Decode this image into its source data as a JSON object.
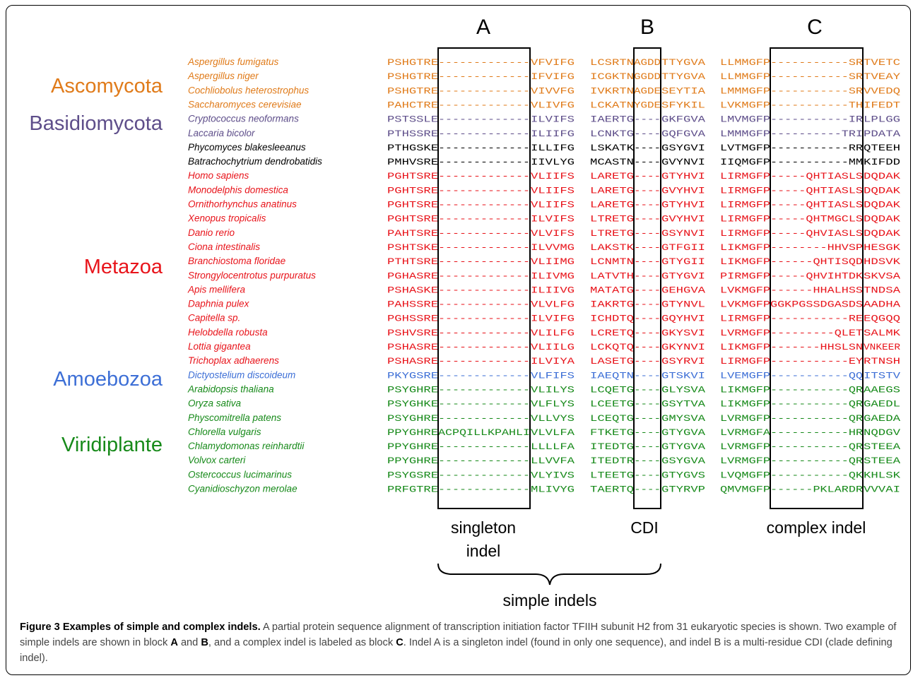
{
  "colors": {
    "Ascomycota": "#e07b1a",
    "Basidiomycota": "#5e4e8a",
    "Other": "#000000",
    "Metazoa": "#e8141b",
    "Amoebozoa": "#3d6fd6",
    "Viridiplante": "#178a1a"
  },
  "groups": [
    {
      "label": "Ascomycota",
      "clade": "Ascomycota"
    },
    {
      "label": "Basidiomycota",
      "clade": "Basidiomycota"
    },
    {
      "label": "Metazoa",
      "clade": "Metazoa"
    },
    {
      "label": "Amoebozoa",
      "clade": "Amoebozoa"
    },
    {
      "label": "Viridiplante",
      "clade": "Viridiplante"
    }
  ],
  "blocks": [
    "A",
    "B",
    "C"
  ],
  "annotations": {
    "singleton": [
      "singleton",
      "indel"
    ],
    "cdi": "CDI",
    "complex": "complex indel",
    "simple": "simple indels"
  },
  "rows": [
    {
      "species": "Aspergillus fumigatus",
      "clade": "Ascomycota",
      "s1": "PSHGTRE",
      "a": "-------------",
      "s2": "VFVIFG",
      "s3": "LCSRTN",
      "b": "AGDD",
      "s4": "TTYGVA",
      "s5": "LLMMGFP",
      "c": "-----------SR",
      "s6": "TVETC"
    },
    {
      "species": "Aspergillus niger",
      "clade": "Ascomycota",
      "s1": "PSHGTRE",
      "a": "-------------",
      "s2": "IFVIFG",
      "s3": "ICGKTN",
      "b": "GGDD",
      "s4": "TTYGVA",
      "s5": "LLMMGFP",
      "c": "-----------SR",
      "s6": "TVEAY"
    },
    {
      "species": "Cochliobolus heterostrophus",
      "clade": "Ascomycota",
      "s1": "PSHGTRE",
      "a": "-------------",
      "s2": "VIVVFG",
      "s3": "IVKRTN",
      "b": "AGDE",
      "s4": "SEYTIA",
      "s5": "LMMMGFP",
      "c": "-----------SR",
      "s6": "VVEDQ"
    },
    {
      "species": "Saccharomyces cerevisiae",
      "clade": "Ascomycota",
      "s1": "PAHCTRE",
      "a": "-------------",
      "s2": "VLIVFG",
      "s3": "LCKATN",
      "b": "YGDE",
      "s4": "SFYKIL",
      "s5": "LVKMGFP",
      "c": "-----------TH",
      "s6": "IFEDT"
    },
    {
      "species": "Cryptococcus neoformans",
      "clade": "Basidiomycota",
      "s1": "PSTSSLE",
      "a": "-------------",
      "s2": "ILVIFS",
      "s3": "IAERTG",
      "b": "----",
      "s4": "GKFGVA",
      "s5": "LMVMGFP",
      "c": "-----------IR",
      "s6": "LPLGG"
    },
    {
      "species": "Laccaria bicolor",
      "clade": "Basidiomycota",
      "s1": "PTHSSRE",
      "a": "-------------",
      "s2": "ILIIFG",
      "s3": "LCNKTG",
      "b": "----",
      "s4": "GQFGVA",
      "s5": "LMMMGFP",
      "c": "----------TRI",
      "s6": "PDATA"
    },
    {
      "species": "Phycomyces blakesleeanus",
      "clade": "Other",
      "s1": "PTHGSKE",
      "a": "-------------",
      "s2": "ILLIFG",
      "s3": "LSKATK",
      "b": "----",
      "s4": "GSYGVI",
      "s5": "LVTMGFP",
      "c": "-----------RR",
      "s6": "QTEEH"
    },
    {
      "species": "Batrachochytrium dendrobatidis",
      "clade": "Other",
      "s1": "PMHVSRE",
      "a": "-------------",
      "s2": "IIVLYG",
      "s3": "MCASTN",
      "b": "----",
      "s4": "GVYNVI",
      "s5": "IIQMGFP",
      "c": "-----------MM",
      "s6": "KIFDD"
    },
    {
      "species": "Homo sapiens",
      "clade": "Metazoa",
      "s1": "PGHTSRE",
      "a": "-------------",
      "s2": "VLIIFS",
      "s3": "LARETG",
      "b": "----",
      "s4": "GTYHVI",
      "s5": "LIRMGFP",
      "c": "-----QHTIASLS",
      "s6": "DQDAK"
    },
    {
      "species": "Monodelphis domestica",
      "clade": "Metazoa",
      "s1": "PGHTSRE",
      "a": "-------------",
      "s2": "VLIIFS",
      "s3": "LARETG",
      "b": "----",
      "s4": "GVYHVI",
      "s5": "LIRMGFP",
      "c": "-----QHTIASLS",
      "s6": "DQDAK"
    },
    {
      "species": "Ornithorhynchus anatinus",
      "clade": "Metazoa",
      "s1": "PGHTSRE",
      "a": "-------------",
      "s2": "VLIIFS",
      "s3": "LARETG",
      "b": "----",
      "s4": "GTYHVI",
      "s5": "LIRMGFP",
      "c": "-----QHTIASLS",
      "s6": "DQDAK"
    },
    {
      "species": "Xenopus tropicalis",
      "clade": "Metazoa",
      "s1": "PGHTSRE",
      "a": "-------------",
      "s2": "ILVIFS",
      "s3": "LTRETG",
      "b": "----",
      "s4": "GVYHVI",
      "s5": "LIRMGFP",
      "c": "-----QHTMGCLS",
      "s6": "DQDAK"
    },
    {
      "species": "Danio rerio",
      "clade": "Metazoa",
      "s1": "PAHTSRE",
      "a": "-------------",
      "s2": "VLVIFS",
      "s3": "LTRETG",
      "b": "----",
      "s4": "GSYNVI",
      "s5": "LIRMGFP",
      "c": "-----QHVIASLS",
      "s6": "DQDAK"
    },
    {
      "species": "Ciona intestinalis",
      "clade": "Metazoa",
      "s1": "PSHTSKE",
      "a": "-------------",
      "s2": "ILVVMG",
      "s3": "LAKSTK",
      "b": "----",
      "s4": "GTFGII",
      "s5": "LIKMGFP",
      "c": "--------HHVSP",
      "s6": "HESGK"
    },
    {
      "species": "Branchiostoma floridae",
      "clade": "Metazoa",
      "s1": "PTHTSRE",
      "a": "-------------",
      "s2": "VLIIMG",
      "s3": "LCNMTN",
      "b": "----",
      "s4": "GTYGII",
      "s5": "LIKMGFP",
      "c": "------QHTISQD",
      "s6": "HDSVK"
    },
    {
      "species": "Strongylocentrotus purpuratus",
      "clade": "Metazoa",
      "s1": "PGHASRE",
      "a": "-------------",
      "s2": "ILIVMG",
      "s3": "LATVTH",
      "b": "----",
      "s4": "GTYGVI",
      "s5": "PIRMGFP",
      "c": "-----QHVIHTDK",
      "s6": "SKVSA"
    },
    {
      "species": "Apis mellifera",
      "clade": "Metazoa",
      "s1": "PSHASKE",
      "a": "-------------",
      "s2": "ILIIVG",
      "s3": "MATATG",
      "b": "----",
      "s4": "GEHGVA",
      "s5": "LVKMGFP",
      "c": "------HHALHSS",
      "s6": "TNDSA"
    },
    {
      "species": "Daphnia pulex",
      "clade": "Metazoa",
      "s1": "PAHSSRE",
      "a": "-------------",
      "s2": "VLVLFG",
      "s3": "IAKRTG",
      "b": "----",
      "s4": "GTYNVL",
      "s5": "LVKMGFP",
      "c": "GGKPGSSDGASDS",
      "s6": "AADHA"
    },
    {
      "species": "Capitella sp.",
      "clade": "Metazoa",
      "s1": "PGHSSRE",
      "a": "-------------",
      "s2": "ILVIFG",
      "s3": "ICHDTQ",
      "b": "----",
      "s4": "GQYHVI",
      "s5": "LIRMGFP",
      "c": "-----------RE",
      "s6": "EQGQQ"
    },
    {
      "species": "Helobdella robusta",
      "clade": "Metazoa",
      "s1": "PSHVSRE",
      "a": "-------------",
      "s2": "VLILFG",
      "s3": "LCRETQ",
      "b": "----",
      "s4": "GKYSVI",
      "s5": "LVRMGFP",
      "c": "---------QLET",
      "s6": "SALMK"
    },
    {
      "species": "Lottia gigantea",
      "clade": "Metazoa",
      "s1": "PSHASRE",
      "a": "-------------",
      "s2": "VLIILG",
      "s3": "LCKQTQ",
      "b": "----",
      "s4": "GKYNVI",
      "s5": "LIKMGFP",
      "c": "-------HHSLSN",
      "s6": "VNKEER"
    },
    {
      "species": "Trichoplax adhaerens",
      "clade": "Metazoa",
      "s1": "PSHASRE",
      "a": "-------------",
      "s2": "ILVIYA",
      "s3": "LASETG",
      "b": "----",
      "s4": "GSYRVI",
      "s5": "LIRMGFP",
      "c": "-----------EY",
      "s6": "RTNSH"
    },
    {
      "species": "Dictyostelium discoideum",
      "clade": "Amoebozoa",
      "s1": "PKYGSRE",
      "a": "-------------",
      "s2": "VLFIFS",
      "s3": "IAEQTN",
      "b": "----",
      "s4": "GTSKVI",
      "s5": "LVEMGFP",
      "c": "-----------QQ",
      "s6": "ITSTV"
    },
    {
      "species": "Arabidopsis thaliana",
      "clade": "Viridiplante",
      "s1": "PSYGHRE",
      "a": "-------------",
      "s2": "VLILYS",
      "s3": "LCQETG",
      "b": "----",
      "s4": "GLYSVA",
      "s5": "LIKMGFP",
      "c": "-----------QR",
      "s6": "AAEGS"
    },
    {
      "species": "Oryza sativa",
      "clade": "Viridiplante",
      "s1": "PSYGHKE",
      "a": "-------------",
      "s2": "VLFLYS",
      "s3": "LCEETG",
      "b": "----",
      "s4": "GSYTVA",
      "s5": "LIKMGFP",
      "c": "-----------QR",
      "s6": "GAEDL"
    },
    {
      "species": "Physcomitrella patens",
      "clade": "Viridiplante",
      "s1": "PSYGHRE",
      "a": "-------------",
      "s2": "VLLVYS",
      "s3": "LCEQTG",
      "b": "----",
      "s4": "GMYSVA",
      "s5": "LVRMGFP",
      "c": "-----------QR",
      "s6": "GAEDA"
    },
    {
      "species": "Chlorella vulgaris",
      "clade": "Viridiplante",
      "s1": "PPYGHRE",
      "a": "ACPQILLKPAHLI",
      "s2": "VLVLFA",
      "s3": "FTKETG",
      "b": "----",
      "s4": "GTYGVA",
      "s5": "LVRMGFA",
      "c": "-----------HR",
      "s6": "NQDGV"
    },
    {
      "species": "Chlamydomonas reinhardtii",
      "clade": "Viridiplante",
      "s1": "PPYGHRE",
      "a": "-------------",
      "s2": "LLLLFA",
      "s3": "ITEDTG",
      "b": "----",
      "s4": "GTYGVA",
      "s5": "LVRMGFP",
      "c": "-----------QR",
      "s6": "STEEA"
    },
    {
      "species": "Volvox carteri",
      "clade": "Viridiplante",
      "s1": "PPYGHRE",
      "a": "-------------",
      "s2": "LLVVFA",
      "s3": "ITEDTR",
      "b": "----",
      "s4": "GSYGVA",
      "s5": "LVRMGFP",
      "c": "-----------QR",
      "s6": "STEEA"
    },
    {
      "species": "Ostercoccus lucimarinus",
      "clade": "Viridiplante",
      "s1": "PSYGSRE",
      "a": "-------------",
      "s2": "VLYIVS",
      "s3": "LTEETG",
      "b": "----",
      "s4": "GTYGVS",
      "s5": "LVQMGFP",
      "c": "-----------QK",
      "s6": "KHLSK"
    },
    {
      "species": "Cyanidioschyzon merolae",
      "clade": "Viridiplante",
      "s1": "PRFGTRE",
      "a": "-------------",
      "s2": "MLIVYG",
      "s3": "TAERTQ",
      "b": "----",
      "s4": "GTYRVP",
      "s5": "QMVMGFP",
      "c": "------PKLARDR",
      "s6": "VVVAI"
    }
  ],
  "caption": {
    "title": "Figure 3 Examples of simple and complex indels.",
    "t1": " A partial protein sequence alignment of transcription initiation factor TFIIH subunit H2 from 31 eukaryotic species is shown. Two example of simple indels are shown in block ",
    "b1": "A",
    "t2": " and ",
    "b2": "B",
    "t3": ", and a complex indel is labeled as block ",
    "b3": "C",
    "t4": ". Indel A is a singleton indel (found in only one sequence), and indel B is a multi-residue CDI (clade defining indel)."
  }
}
